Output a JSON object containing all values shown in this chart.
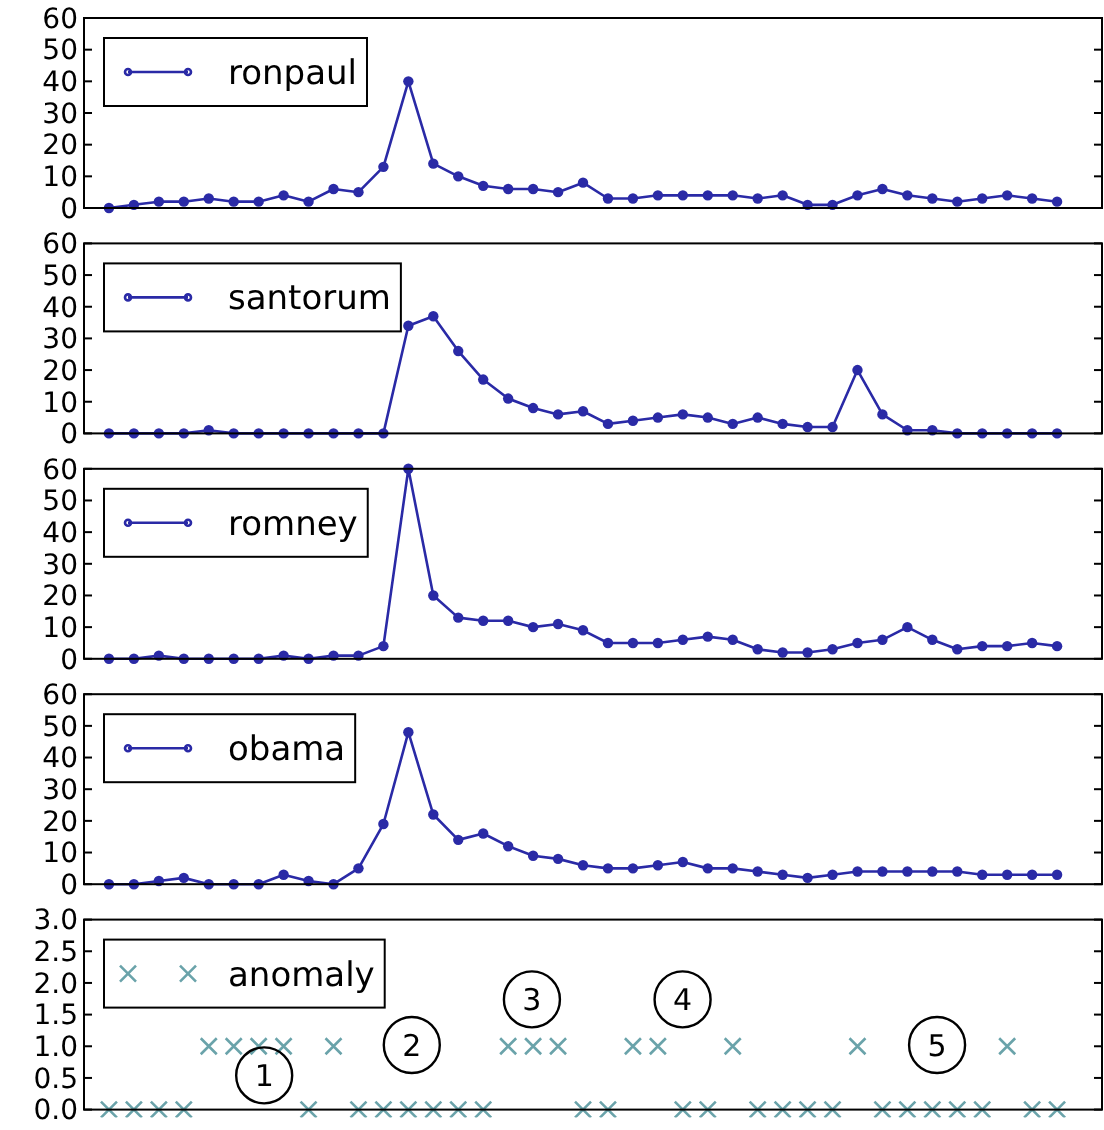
{
  "chart_data": [
    {
      "type": "line",
      "categories": [
        null,
        null,
        null,
        null,
        null,
        null,
        null,
        null,
        null,
        null,
        null,
        null,
        null,
        null,
        null,
        null,
        null,
        null,
        null,
        null,
        null,
        null,
        null,
        null,
        null,
        null,
        null,
        null,
        null,
        null,
        null,
        null,
        null,
        null,
        null,
        null,
        null,
        null,
        null
      ],
      "series": [
        {
          "name": "ronpaul",
          "color": "#2a2aa6",
          "values": [
            0,
            1,
            2,
            2,
            3,
            2,
            2,
            4,
            2,
            6,
            5,
            13,
            40,
            14,
            10,
            7,
            6,
            6,
            5,
            8,
            3,
            3,
            4,
            4,
            4,
            4,
            3,
            4,
            1,
            1,
            4,
            6,
            4,
            3,
            2,
            3,
            4,
            3,
            2
          ]
        }
      ],
      "ylim": [
        0,
        60
      ],
      "yticks": [
        0,
        10,
        20,
        30,
        40,
        50,
        60
      ],
      "marker": "circle",
      "line_style": "solid",
      "legend": "top left",
      "tick_labels": "y"
    },
    {
      "type": "line",
      "categories": [
        null,
        null,
        null,
        null,
        null,
        null,
        null,
        null,
        null,
        null,
        null,
        null,
        null,
        null,
        null,
        null,
        null,
        null,
        null,
        null,
        null,
        null,
        null,
        null,
        null,
        null,
        null,
        null,
        null,
        null,
        null,
        null,
        null,
        null,
        null,
        null,
        null,
        null,
        null
      ],
      "series": [
        {
          "name": "santorum",
          "color": "#2a2aa6",
          "values": [
            0,
            0,
            0,
            0,
            1,
            0,
            0,
            0,
            0,
            0,
            0,
            0,
            34,
            37,
            26,
            17,
            11,
            8,
            6,
            7,
            3,
            4,
            5,
            6,
            5,
            3,
            5,
            3,
            2,
            2,
            20,
            6,
            1,
            1,
            0,
            0,
            0,
            0,
            0
          ]
        }
      ],
      "ylim": [
        0,
        60
      ],
      "yticks": [
        0,
        10,
        20,
        30,
        40,
        50,
        60
      ],
      "marker": "circle",
      "line_style": "solid",
      "legend": "top left",
      "tick_labels": "y"
    },
    {
      "type": "line",
      "categories": [
        null,
        null,
        null,
        null,
        null,
        null,
        null,
        null,
        null,
        null,
        null,
        null,
        null,
        null,
        null,
        null,
        null,
        null,
        null,
        null,
        null,
        null,
        null,
        null,
        null,
        null,
        null,
        null,
        null,
        null,
        null,
        null,
        null,
        null,
        null,
        null,
        null,
        null,
        null
      ],
      "series": [
        {
          "name": "romney",
          "color": "#2a2aa6",
          "values": [
            0,
            0,
            1,
            0,
            0,
            0,
            0,
            1,
            0,
            1,
            1,
            4,
            60,
            20,
            13,
            12,
            12,
            10,
            11,
            9,
            5,
            5,
            5,
            6,
            7,
            6,
            3,
            2,
            2,
            3,
            5,
            6,
            10,
            6,
            3,
            4,
            4,
            5,
            4
          ]
        }
      ],
      "ylim": [
        0,
        60
      ],
      "yticks": [
        0,
        10,
        20,
        30,
        40,
        50,
        60
      ],
      "marker": "circle",
      "line_style": "solid",
      "legend": "top left",
      "tick_labels": "y"
    },
    {
      "type": "line",
      "categories": [
        null,
        null,
        null,
        null,
        null,
        null,
        null,
        null,
        null,
        null,
        null,
        null,
        null,
        null,
        null,
        null,
        null,
        null,
        null,
        null,
        null,
        null,
        null,
        null,
        null,
        null,
        null,
        null,
        null,
        null,
        null,
        null,
        null,
        null,
        null,
        null,
        null,
        null,
        null
      ],
      "series": [
        {
          "name": "obama",
          "color": "#2a2aa6",
          "values": [
            0,
            0,
            1,
            2,
            0,
            0,
            0,
            3,
            1,
            0,
            5,
            19,
            48,
            22,
            14,
            16,
            12,
            9,
            8,
            6,
            5,
            5,
            6,
            7,
            5,
            5,
            4,
            3,
            2,
            3,
            4,
            4,
            4,
            4,
            4,
            3,
            3,
            3,
            3
          ]
        }
      ],
      "ylim": [
        0,
        60
      ],
      "yticks": [
        0,
        10,
        20,
        30,
        40,
        50,
        60
      ],
      "marker": "circle",
      "line_style": "solid",
      "legend": "top left",
      "tick_labels": "y"
    },
    {
      "type": "scatter",
      "categories": [
        null,
        null,
        null,
        null,
        null,
        null,
        null,
        null,
        null,
        null,
        null,
        null,
        null,
        null,
        null,
        null,
        null,
        null,
        null,
        null,
        null,
        null,
        null,
        null,
        null,
        null,
        null,
        null,
        null,
        null,
        null,
        null,
        null,
        null,
        null,
        null,
        null,
        null,
        null
      ],
      "series": [
        {
          "name": "anomaly",
          "color": "#6aa3aa",
          "values": [
            0,
            0,
            0,
            0,
            1,
            1,
            1,
            1,
            0,
            1,
            0,
            0,
            0,
            0,
            0,
            0,
            1,
            1,
            1,
            0,
            0,
            1,
            1,
            0,
            0,
            1,
            0,
            0,
            0,
            0,
            1,
            0,
            0,
            0,
            0,
            0,
            1,
            0,
            0
          ]
        }
      ],
      "ylim": [
        0,
        3
      ],
      "yticks": [
        {
          "value": 0,
          "label": "0.0"
        },
        {
          "value": 0.5,
          "label": "0.5"
        },
        {
          "value": 1,
          "label": "1.0"
        },
        {
          "value": 1.5,
          "label": "1.5"
        },
        {
          "value": 2,
          "label": "2.0"
        },
        {
          "value": 2.5,
          "label": "2.5"
        },
        {
          "value": 3,
          "label": "3.0"
        }
      ],
      "marker": "cross",
      "legend": "top left",
      "tick_labels": "y",
      "annotations": [
        "1",
        "2",
        "3",
        "4",
        "5"
      ]
    }
  ]
}
